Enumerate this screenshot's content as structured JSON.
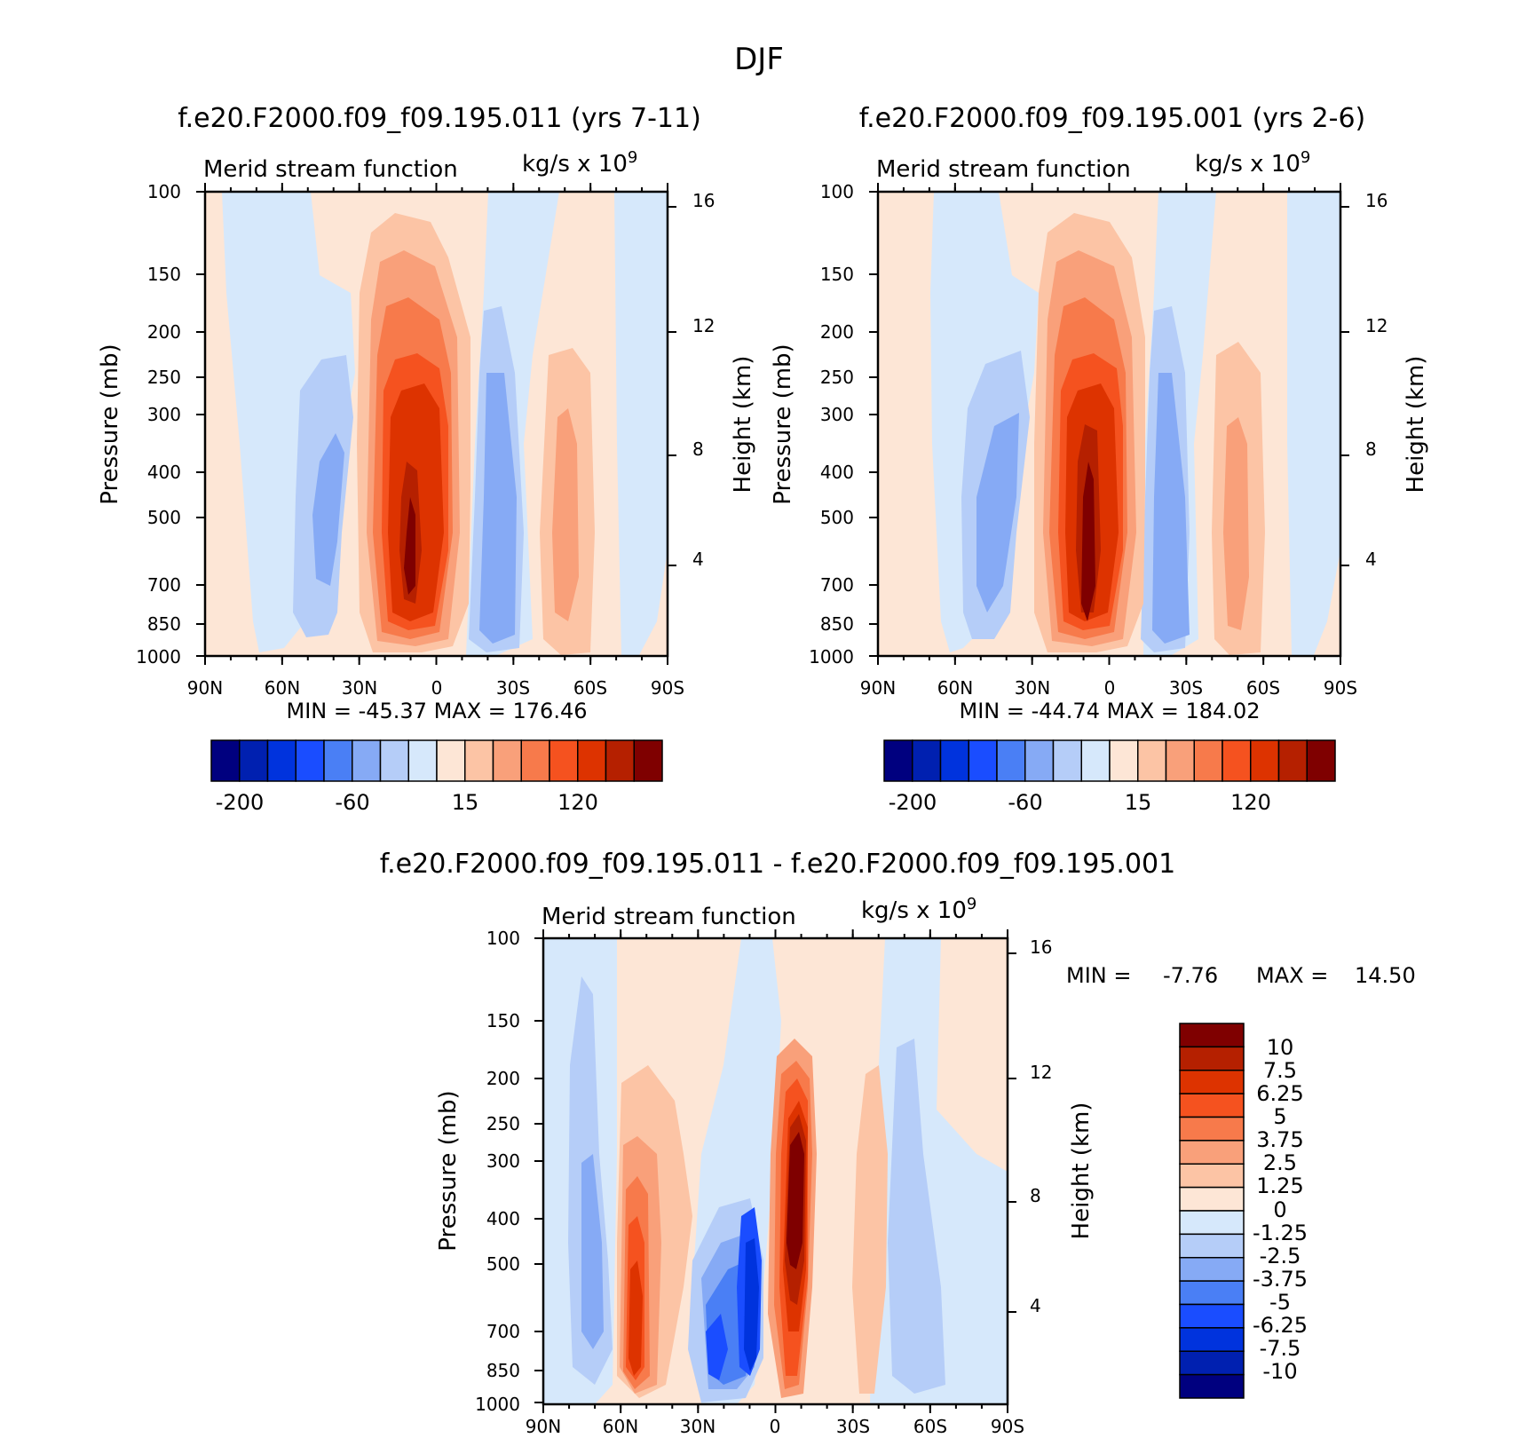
{
  "figure": {
    "title": "DJF",
    "colors": {
      "neg": [
        "#00007f",
        "#0020b0",
        "#0033dd",
        "#1a4dff",
        "#4a7ff5",
        "#86aaf5",
        "#b5cdf8",
        "#d6e8fb"
      ],
      "pos": [
        "#fde6d6",
        "#fcc4a5",
        "#f9a07a",
        "#f77a4b",
        "#f5521f",
        "#dd3300",
        "#b52000",
        "#7f0000"
      ]
    }
  },
  "chart_data": [
    {
      "type": "heatmap",
      "id": "top-left",
      "subtitle": "f.e20.F2000.f09_f09.195.011 (yrs 7-11)",
      "left_string": "Merid stream function",
      "right_string_base": "kg/s x 10",
      "right_string_exp": "9",
      "ylabel": "Pressure (mb)",
      "ylabel_right": "Height (km)",
      "x_ticks": [
        "90N",
        "60N",
        "30N",
        "0",
        "30S",
        "60S",
        "90S"
      ],
      "y_ticks": [
        "100",
        "150",
        "200",
        "250",
        "300",
        "400",
        "500",
        "700",
        "850",
        "1000"
      ],
      "y_ticks_right": [
        "16",
        "12",
        "8",
        "4"
      ],
      "log_pressure": true,
      "ylim": [
        1000,
        100
      ],
      "xlim": [
        "90N",
        "90S"
      ],
      "min_max_text": "MIN = -45.37 MAX = 176.46",
      "colorbar": {
        "orientation": "horizontal",
        "labels": [
          "-200",
          "-60",
          "15",
          "120"
        ]
      },
      "features": [
        {
          "lat": 0,
          "p": 100,
          "v": -2
        },
        {
          "lat": 0,
          "p": 1000,
          "v": 0
        }
      ]
    },
    {
      "type": "heatmap",
      "id": "top-right",
      "subtitle": "f.e20.F2000.f09_f09.195.001 (yrs 2-6)",
      "left_string": "Merid stream function",
      "right_string_base": "kg/s x 10",
      "right_string_exp": "9",
      "ylabel": "Pressure (mb)",
      "ylabel_right": "Height (km)",
      "x_ticks": [
        "90N",
        "60N",
        "30N",
        "0",
        "30S",
        "60S",
        "90S"
      ],
      "y_ticks": [
        "100",
        "150",
        "200",
        "250",
        "300",
        "400",
        "500",
        "700",
        "850",
        "1000"
      ],
      "y_ticks_right": [
        "16",
        "12",
        "8",
        "4"
      ],
      "log_pressure": true,
      "min_max_text": "MIN = -44.74 MAX = 184.02",
      "colorbar": {
        "orientation": "horizontal",
        "labels": [
          "-200",
          "-60",
          "15",
          "120"
        ]
      }
    },
    {
      "type": "heatmap",
      "id": "bottom",
      "subtitle": "f.e20.F2000.f09_f09.195.011 - f.e20.F2000.f09_f09.195.001",
      "left_string": "Merid stream function",
      "right_string_base": "kg/s x 10",
      "right_string_exp": "9",
      "ylabel": "Pressure (mb)",
      "ylabel_right": "Height (km)",
      "x_ticks": [
        "90N",
        "60N",
        "30N",
        "0",
        "30S",
        "60S",
        "90S"
      ],
      "y_ticks": [
        "100",
        "150",
        "200",
        "250",
        "300",
        "400",
        "500",
        "700",
        "850",
        "1000"
      ],
      "y_ticks_right": [
        "16",
        "12",
        "8",
        "4"
      ],
      "log_pressure": true,
      "min_label": "MIN =",
      "min_value": "-7.76",
      "max_label": "MAX =",
      "max_value": "14.50",
      "colorbar": {
        "orientation": "vertical",
        "labels": [
          "10",
          "7.5",
          "6.25",
          "5",
          "3.75",
          "2.5",
          "1.25",
          "0",
          "-1.25",
          "-2.5",
          "-3.75",
          "-5",
          "-6.25",
          "-7.5",
          "-10"
        ]
      }
    }
  ]
}
